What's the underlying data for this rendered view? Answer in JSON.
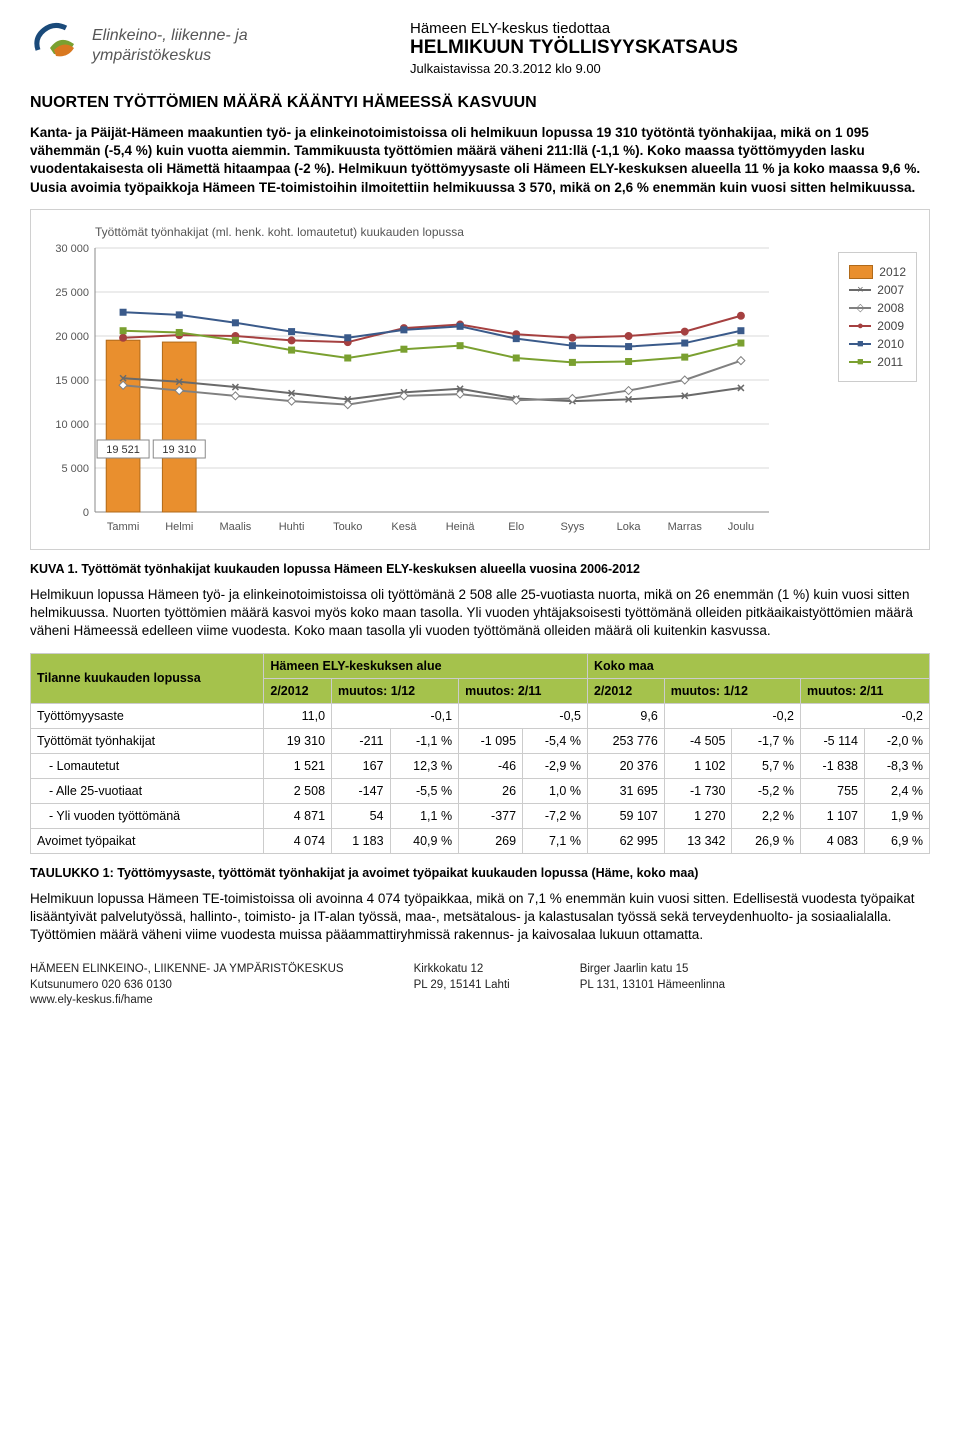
{
  "header": {
    "org_line1": "Elinkeino-, liikenne- ja",
    "org_line2": "ympäristökeskus",
    "t1": "Hämeen ELY-keskus tiedottaa",
    "t2": "HELMIKUUN TYÖLLISYYSKATSAUS",
    "t3": "Julkaistavissa 20.3.2012 klo 9.00"
  },
  "main_title": "NUORTEN TYÖTTÖMIEN MÄÄRÄ KÄÄNTYI HÄMEESSÄ KASVUUN",
  "para1_bold": "Kanta- ja Päijät-Hämeen maakuntien työ- ja elinkeinotoimistoissa oli helmikuun lopussa 19 310 työtöntä työnhakijaa, mikä on 1 095 vähemmän (-5,4 %) kuin vuotta aiemmin. Tammikuusta työttömien määrä väheni 211:llä (-1,1 %). Koko maassa työttömyyden lasku vuodentakaisesta oli Hämettä hitaampaa (-2 %). Helmikuun työttömyysaste oli Hämeen ELY-keskuksen alueella 11 % ja koko maassa 9,6 %. Uusia avoimia työpaikkoja Hämeen TE-toimistoihin ilmoitettiin helmikuussa 3 570, mikä on 2,6 % enemmän kuin vuosi sitten helmikuussa.",
  "chart": {
    "title": "Työttömät työnhakijat (ml. henk. koht. lomautetut) kuukauden lopussa",
    "months": [
      "Tammi",
      "Helmi",
      "Maalis",
      "Huhti",
      "Touko",
      "Kesä",
      "Heinä",
      "Elo",
      "Syys",
      "Loka",
      "Marras",
      "Joulu"
    ],
    "ylim": [
      0,
      30000
    ],
    "ytick_step": 5000,
    "plot_bg": "#ffffff",
    "grid_color": "#d8d8d8",
    "axis_color": "#888888",
    "title_color": "#555555",
    "bar_labels": [
      "19 521",
      "19 310"
    ],
    "series": {
      "2012": {
        "color": "#e98f2e",
        "type": "bar",
        "values": [
          19521,
          19310
        ]
      },
      "2007": {
        "color": "#6a6a6a",
        "marker": "x",
        "values": [
          15200,
          14800,
          14200,
          13500,
          12800,
          13600,
          14000,
          12900,
          12600,
          12800,
          13200,
          14100
        ]
      },
      "2008": {
        "color": "#808080",
        "marker": "diamond",
        "values": [
          14400,
          13800,
          13200,
          12600,
          12200,
          13200,
          13400,
          12700,
          12900,
          13800,
          15000,
          17200
        ]
      },
      "2009": {
        "color": "#a54040",
        "marker": "circle",
        "values": [
          19800,
          20100,
          20000,
          19500,
          19300,
          20900,
          21300,
          20200,
          19800,
          20000,
          20500,
          22300
        ]
      },
      "2010": {
        "color": "#3a5a8a",
        "marker": "square",
        "values": [
          22700,
          22400,
          21500,
          20500,
          19800,
          20700,
          21100,
          19700,
          18900,
          18800,
          19200,
          20600
        ]
      },
      "2011": {
        "color": "#7aa030",
        "marker": "square",
        "values": [
          20600,
          20400,
          19500,
          18400,
          17500,
          18500,
          18900,
          17500,
          17000,
          17100,
          17600,
          19200
        ]
      }
    },
    "legend_order": [
      "2012",
      "2007",
      "2008",
      "2009",
      "2010",
      "2011"
    ]
  },
  "caption1": "KUVA 1. Työttömät työnhakijat kuukauden lopussa Hämeen ELY-keskuksen alueella vuosina 2006-2012",
  "para2": "Helmikuun lopussa Hämeen työ- ja elinkeinotoimistoissa oli työttömänä 2 508 alle 25-vuotiasta nuorta, mikä on 26 enemmän (1 %) kuin vuosi sitten helmikuussa. Nuorten työttömien määrä kasvoi myös koko maan tasolla. Yli vuoden yhtäjaksoisesti työttömänä olleiden pitkäaikaistyöttömien määrä väheni Hämeessä edelleen viime vuodesta. Koko maan tasolla yli vuoden työttömänä olleiden määrä oli kuitenkin kasvussa.",
  "table": {
    "header_bg": "#a5c24c",
    "left_label": "Tilanne kuukauden lopussa",
    "group1": "Hämeen ELY-keskuksen alue",
    "group2": "Koko maa",
    "cols": [
      "2/2012",
      "muutos: 1/12",
      "muutos: 2/11",
      "2/2012",
      "muutos: 1/12",
      "muutos: 2/11"
    ],
    "rows": [
      {
        "label": "Työttömyysaste",
        "indent": false,
        "vals": [
          "11,0",
          "-0,1",
          "-0,5",
          "9,6",
          "-0,2",
          "-0,2"
        ]
      },
      {
        "label": "Työttömät työnhakijat",
        "indent": false,
        "vals": [
          "19 310",
          "-211",
          "-1,1 %",
          "-1 095",
          "-5,4 %",
          "253 776",
          "-4 505",
          "-1,7 %",
          "-5 114",
          "-2,0 %"
        ]
      },
      {
        "label": "- Lomautetut",
        "indent": true,
        "vals": [
          "1 521",
          "167",
          "12,3 %",
          "-46",
          "-2,9 %",
          "20 376",
          "1 102",
          "5,7 %",
          "-1 838",
          "-8,3 %"
        ]
      },
      {
        "label": "- Alle 25-vuotiaat",
        "indent": true,
        "vals": [
          "2 508",
          "-147",
          "-5,5 %",
          "26",
          "1,0 %",
          "31 695",
          "-1 730",
          "-5,2 %",
          "755",
          "2,4 %"
        ]
      },
      {
        "label": "- Yli vuoden työttömänä",
        "indent": true,
        "vals": [
          "4 871",
          "54",
          "1,1 %",
          "-377",
          "-7,2 %",
          "59 107",
          "1 270",
          "2,2 %",
          "1 107",
          "1,9 %"
        ]
      },
      {
        "label": "Avoimet työpaikat",
        "indent": false,
        "vals": [
          "4 074",
          "1 183",
          "40,9 %",
          "269",
          "7,1 %",
          "62 995",
          "13 342",
          "26,9 %",
          "4 083",
          "6,9 %"
        ]
      }
    ]
  },
  "caption2": "TAULUKKO 1: Työttömyysaste, työttömät työnhakijat ja avoimet työpaikat kuukauden lopussa (Häme, koko maa)",
  "para3": "Helmikuun lopussa Hämeen TE-toimistoissa oli avoinna 4 074 työpaikkaa, mikä on 7,1 % enemmän kuin vuosi sitten. Edellisestä vuodesta työpaikat lisääntyivät palvelutyössä, hallinto-, toimisto- ja IT-alan työssä, maa-, metsätalous- ja kalastusalan työssä sekä terveydenhuolto- ja sosiaalialalla. Työttömien määrä väheni viime vuodesta muissa pääammattiryhmissä rakennus- ja kaivosalaa lukuun ottamatta.",
  "footer": {
    "c1a": "HÄMEEN ELINKEINO-, LIIKENNE- JA YMPÄRISTÖKESKUS",
    "c1b": "Kutsunumero 020 636 0130",
    "c1c": "www.ely-keskus.fi/hame",
    "c2a": "Kirkkokatu 12",
    "c2b": "PL 29, 15141 Lahti",
    "c3a": "Birger Jaarlin katu 15",
    "c3b": "PL 131, 13101 Hämeenlinna"
  }
}
